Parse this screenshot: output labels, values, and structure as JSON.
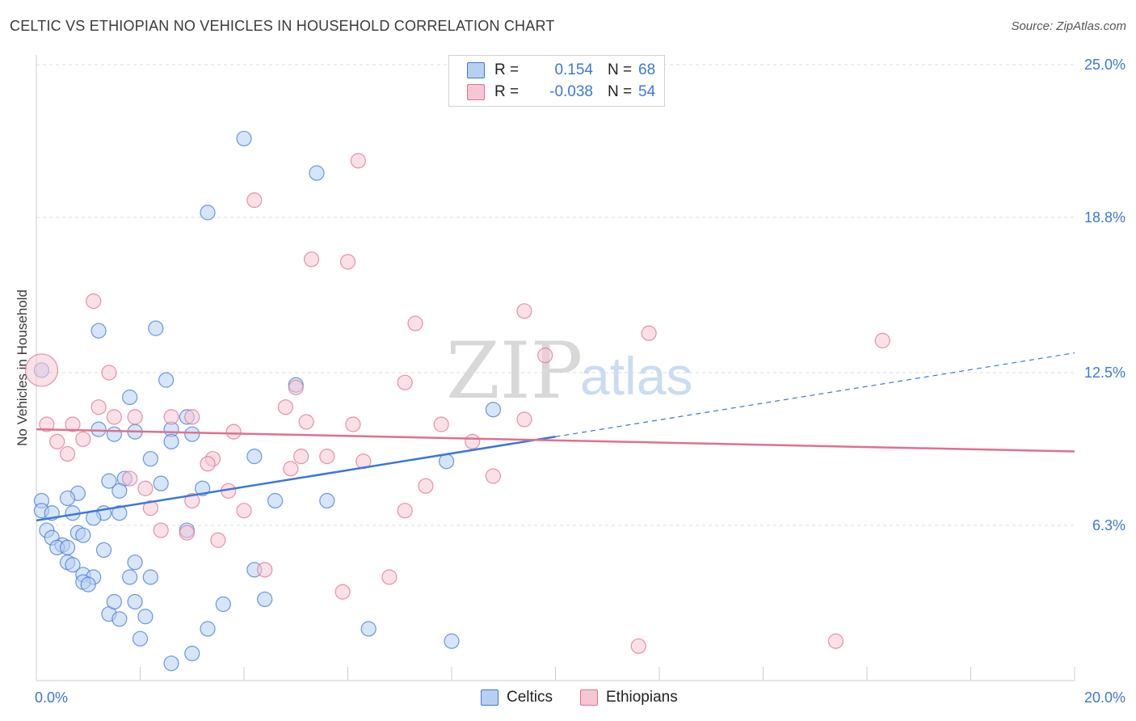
{
  "title": "CELTIC VS ETHIOPIAN NO VEHICLES IN HOUSEHOLD CORRELATION CHART",
  "source": "Source: ZipAtlas.com",
  "legend": {
    "r_label": "R =",
    "n_label": "N =",
    "rows": [
      {
        "r": "0.154",
        "n": "68"
      },
      {
        "r": "-0.038",
        "n": "54"
      }
    ]
  },
  "bottom_legend": [
    "Celtics",
    "Ethiopians"
  ],
  "watermark": {
    "zip": "ZIP",
    "atlas": "atlas"
  },
  "chart_data": {
    "type": "scatter",
    "xlabel": "",
    "ylabel": "No Vehicles in Household",
    "xlim": [
      0,
      20
    ],
    "ylim": [
      0,
      25
    ],
    "x_tick_labels": [
      "0.0%",
      "20.0%"
    ],
    "y_tick_labels": [
      "6.3%",
      "12.5%",
      "18.8%",
      "25.0%"
    ],
    "y_tick_values": [
      6.3,
      12.5,
      18.8,
      25.0
    ],
    "grid": "horizontal dashed",
    "colors": {
      "celtics": "#3c78d8",
      "ethiopians": "#e0708f",
      "celtics_fill": "#b7d0f2",
      "ethiopians_fill": "#f6c6d4"
    },
    "series": [
      {
        "name": "Celtics",
        "r": 0.154,
        "n": 68,
        "trend": {
          "x": [
            0,
            10
          ],
          "y": [
            6.5,
            9.9
          ],
          "dashed_to": [
            20,
            13.3
          ]
        },
        "points": [
          [
            4.0,
            22.0
          ],
          [
            5.4,
            20.6
          ],
          [
            3.3,
            19.0
          ],
          [
            1.2,
            14.2
          ],
          [
            2.3,
            14.3
          ],
          [
            2.5,
            12.2
          ],
          [
            1.8,
            11.5
          ],
          [
            5.0,
            12.0
          ],
          [
            8.8,
            11.0
          ],
          [
            2.9,
            10.7
          ],
          [
            1.2,
            10.2
          ],
          [
            1.5,
            10.0
          ],
          [
            1.9,
            10.1
          ],
          [
            2.6,
            10.2
          ],
          [
            3.0,
            10.0
          ],
          [
            2.6,
            9.7
          ],
          [
            2.2,
            9.0
          ],
          [
            4.2,
            9.1
          ],
          [
            7.9,
            8.9
          ],
          [
            1.4,
            8.1
          ],
          [
            1.7,
            8.2
          ],
          [
            2.4,
            8.0
          ],
          [
            1.6,
            7.7
          ],
          [
            3.2,
            7.8
          ],
          [
            0.8,
            7.6
          ],
          [
            0.6,
            7.4
          ],
          [
            0.1,
            7.3
          ],
          [
            4.6,
            7.3
          ],
          [
            5.6,
            7.3
          ],
          [
            0.1,
            6.9
          ],
          [
            0.3,
            6.8
          ],
          [
            0.7,
            6.8
          ],
          [
            1.3,
            6.8
          ],
          [
            1.6,
            6.8
          ],
          [
            1.1,
            6.6
          ],
          [
            0.8,
            6.0
          ],
          [
            0.2,
            6.1
          ],
          [
            0.3,
            5.8
          ],
          [
            0.9,
            5.9
          ],
          [
            2.9,
            6.1
          ],
          [
            0.5,
            5.5
          ],
          [
            0.4,
            5.4
          ],
          [
            0.6,
            5.4
          ],
          [
            1.3,
            5.3
          ],
          [
            0.6,
            4.8
          ],
          [
            0.7,
            4.7
          ],
          [
            1.9,
            4.8
          ],
          [
            0.9,
            4.3
          ],
          [
            1.1,
            4.2
          ],
          [
            1.8,
            4.2
          ],
          [
            2.2,
            4.2
          ],
          [
            4.2,
            4.5
          ],
          [
            0.9,
            4.0
          ],
          [
            1.0,
            3.9
          ],
          [
            1.9,
            3.2
          ],
          [
            3.6,
            3.1
          ],
          [
            4.4,
            3.3
          ],
          [
            1.4,
            2.7
          ],
          [
            1.6,
            2.5
          ],
          [
            2.1,
            2.6
          ],
          [
            3.3,
            2.1
          ],
          [
            6.4,
            2.1
          ],
          [
            2.0,
            1.7
          ],
          [
            8.0,
            1.6
          ],
          [
            3.0,
            1.1
          ],
          [
            2.6,
            0.7
          ],
          [
            0.1,
            12.6
          ],
          [
            1.5,
            3.2
          ]
        ]
      },
      {
        "name": "Ethiopians",
        "r": -0.038,
        "n": 54,
        "trend": {
          "x": [
            0,
            20
          ],
          "y": [
            10.2,
            9.3
          ]
        },
        "points": [
          [
            6.2,
            21.1
          ],
          [
            4.2,
            19.5
          ],
          [
            5.3,
            17.1
          ],
          [
            6.0,
            17.0
          ],
          [
            1.1,
            15.4
          ],
          [
            9.4,
            15.0
          ],
          [
            7.3,
            14.5
          ],
          [
            11.8,
            14.1
          ],
          [
            16.3,
            13.8
          ],
          [
            9.8,
            13.2
          ],
          [
            1.4,
            12.5
          ],
          [
            7.1,
            12.1
          ],
          [
            5.0,
            11.9
          ],
          [
            1.2,
            11.1
          ],
          [
            4.8,
            11.1
          ],
          [
            1.5,
            10.7
          ],
          [
            1.9,
            10.7
          ],
          [
            2.6,
            10.7
          ],
          [
            3.0,
            10.7
          ],
          [
            5.2,
            10.5
          ],
          [
            6.1,
            10.4
          ],
          [
            7.8,
            10.4
          ],
          [
            9.4,
            10.6
          ],
          [
            0.7,
            10.4
          ],
          [
            3.8,
            10.1
          ],
          [
            0.2,
            10.4
          ],
          [
            0.9,
            9.8
          ],
          [
            0.4,
            9.7
          ],
          [
            8.4,
            9.7
          ],
          [
            0.6,
            9.2
          ],
          [
            5.1,
            9.1
          ],
          [
            5.6,
            9.1
          ],
          [
            3.4,
            9.0
          ],
          [
            6.3,
            8.9
          ],
          [
            3.3,
            8.8
          ],
          [
            4.9,
            8.6
          ],
          [
            8.8,
            8.3
          ],
          [
            1.8,
            8.2
          ],
          [
            7.5,
            7.9
          ],
          [
            2.1,
            7.8
          ],
          [
            3.7,
            7.7
          ],
          [
            3.0,
            7.3
          ],
          [
            2.2,
            7.0
          ],
          [
            4.0,
            6.9
          ],
          [
            7.1,
            6.9
          ],
          [
            2.4,
            6.1
          ],
          [
            2.9,
            6.0
          ],
          [
            3.5,
            5.7
          ],
          [
            4.4,
            4.5
          ],
          [
            6.8,
            4.2
          ],
          [
            5.9,
            3.6
          ],
          [
            11.6,
            1.4
          ],
          [
            15.4,
            1.6
          ],
          [
            0.1,
            12.6
          ]
        ]
      }
    ]
  }
}
